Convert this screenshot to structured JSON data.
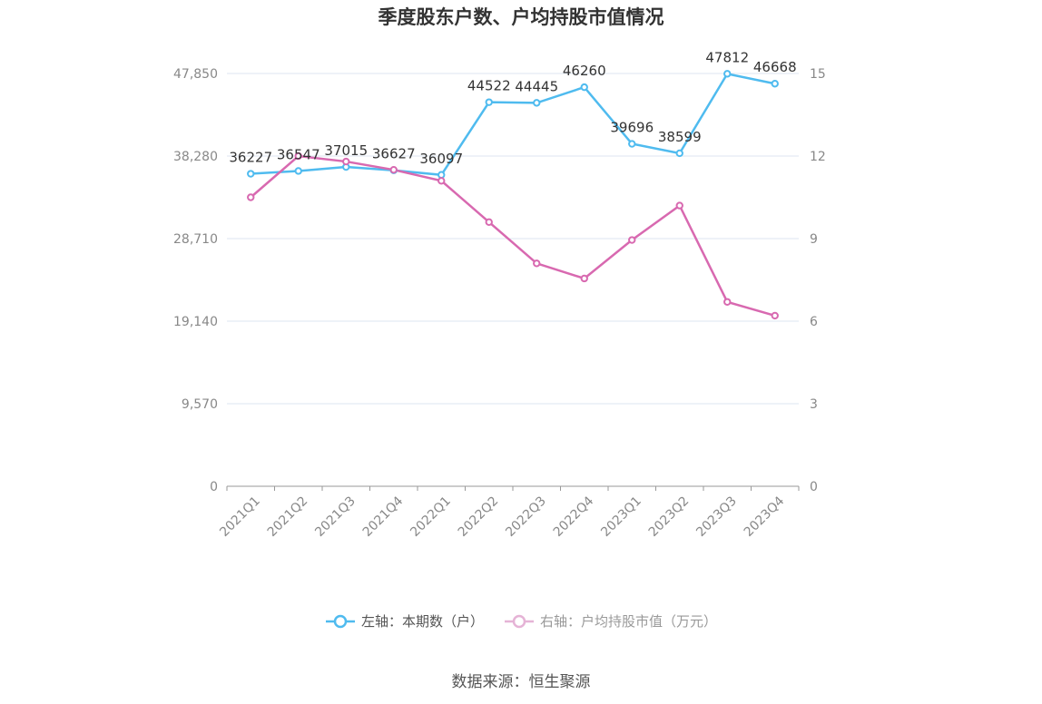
{
  "title": "季度股东户数、户均持股市值情况",
  "source": "数据来源：恒生聚源",
  "colors": {
    "left_series": "#4fbbef",
    "right_series": "#d869b0",
    "grid": "#dde6f0",
    "axis": "#999999"
  },
  "legend": [
    {
      "label": "左轴：本期数（户）",
      "color": "#4fbbef"
    },
    {
      "label": "右轴：户均持股市值（万元）",
      "color": "#d869b0"
    }
  ],
  "chart_data": {
    "type": "line",
    "categories": [
      "2021Q1",
      "2021Q2",
      "2021Q3",
      "2021Q4",
      "2022Q1",
      "2022Q2",
      "2022Q3",
      "2022Q4",
      "2023Q1",
      "2023Q2",
      "2023Q3",
      "2023Q4"
    ],
    "left_axis": {
      "min": 0,
      "max": 47850,
      "ticks": [
        "0",
        "9,570",
        "19,140",
        "28,710",
        "38,280",
        "47,850"
      ],
      "tick_values": [
        0,
        9570,
        19140,
        28710,
        38280,
        47850
      ]
    },
    "right_axis": {
      "min": 0,
      "max": 15,
      "ticks": [
        "0",
        "3",
        "6",
        "9",
        "12",
        "15"
      ],
      "tick_values": [
        0,
        3,
        6,
        9,
        12,
        15
      ]
    },
    "series": [
      {
        "name": "左轴：本期数（户）",
        "axis": "left",
        "values": [
          36227,
          36547,
          37015,
          36627,
          36097,
          44522,
          44445,
          46260,
          39696,
          38599,
          47812,
          46668
        ],
        "labels": [
          "36227",
          "36547",
          "37015",
          "36627",
          "36097",
          "44522",
          "44445",
          "46260",
          "39696",
          "38599",
          "47812",
          "46668"
        ]
      },
      {
        "name": "右轴：户均持股市值（万元）",
        "axis": "right",
        "values": [
          10.5,
          12.0,
          11.8,
          11.5,
          11.1,
          9.6,
          8.1,
          7.55,
          8.95,
          10.2,
          6.7,
          6.2
        ]
      }
    ],
    "grid": true,
    "legend_position": "bottom"
  }
}
